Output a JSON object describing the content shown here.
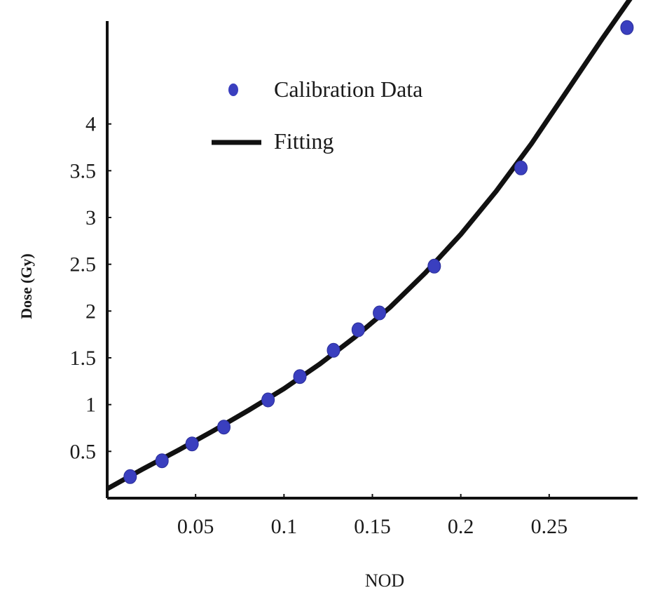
{
  "chart_data": {
    "type": "scatter",
    "xlabel": "NOD",
    "ylabel": "Dose (Gy)",
    "xlim": [
      0,
      0.3
    ],
    "ylim": [
      0,
      5.1
    ],
    "x_ticks": [
      0.05,
      0.1,
      0.15,
      0.2,
      0.25
    ],
    "y_ticks": [
      0.5,
      1,
      1.5,
      2,
      2.5,
      3,
      3.5,
      4
    ],
    "legend_position": "upper-left",
    "series": [
      {
        "name": "Calibration Data",
        "kind": "points",
        "color": "#3a3fbf",
        "points": [
          {
            "x": 0.013,
            "y": 0.23
          },
          {
            "x": 0.031,
            "y": 0.4
          },
          {
            "x": 0.048,
            "y": 0.58
          },
          {
            "x": 0.066,
            "y": 0.76
          },
          {
            "x": 0.091,
            "y": 1.05
          },
          {
            "x": 0.109,
            "y": 1.3
          },
          {
            "x": 0.128,
            "y": 1.58
          },
          {
            "x": 0.142,
            "y": 1.8
          },
          {
            "x": 0.154,
            "y": 1.98
          },
          {
            "x": 0.185,
            "y": 2.48
          },
          {
            "x": 0.234,
            "y": 3.53
          },
          {
            "x": 0.294,
            "y": 5.03
          }
        ]
      },
      {
        "name": "Fitting",
        "kind": "line",
        "color": "#111111",
        "points": [
          {
            "x": 0.0,
            "y": 0.1
          },
          {
            "x": 0.02,
            "y": 0.31
          },
          {
            "x": 0.04,
            "y": 0.51
          },
          {
            "x": 0.06,
            "y": 0.72
          },
          {
            "x": 0.08,
            "y": 0.94
          },
          {
            "x": 0.1,
            "y": 1.17
          },
          {
            "x": 0.12,
            "y": 1.43
          },
          {
            "x": 0.14,
            "y": 1.72
          },
          {
            "x": 0.16,
            "y": 2.04
          },
          {
            "x": 0.18,
            "y": 2.41
          },
          {
            "x": 0.2,
            "y": 2.82
          },
          {
            "x": 0.22,
            "y": 3.28
          },
          {
            "x": 0.24,
            "y": 3.79
          },
          {
            "x": 0.26,
            "y": 4.35
          },
          {
            "x": 0.28,
            "y": 4.91
          },
          {
            "x": 0.3,
            "y": 5.45
          }
        ]
      }
    ]
  }
}
